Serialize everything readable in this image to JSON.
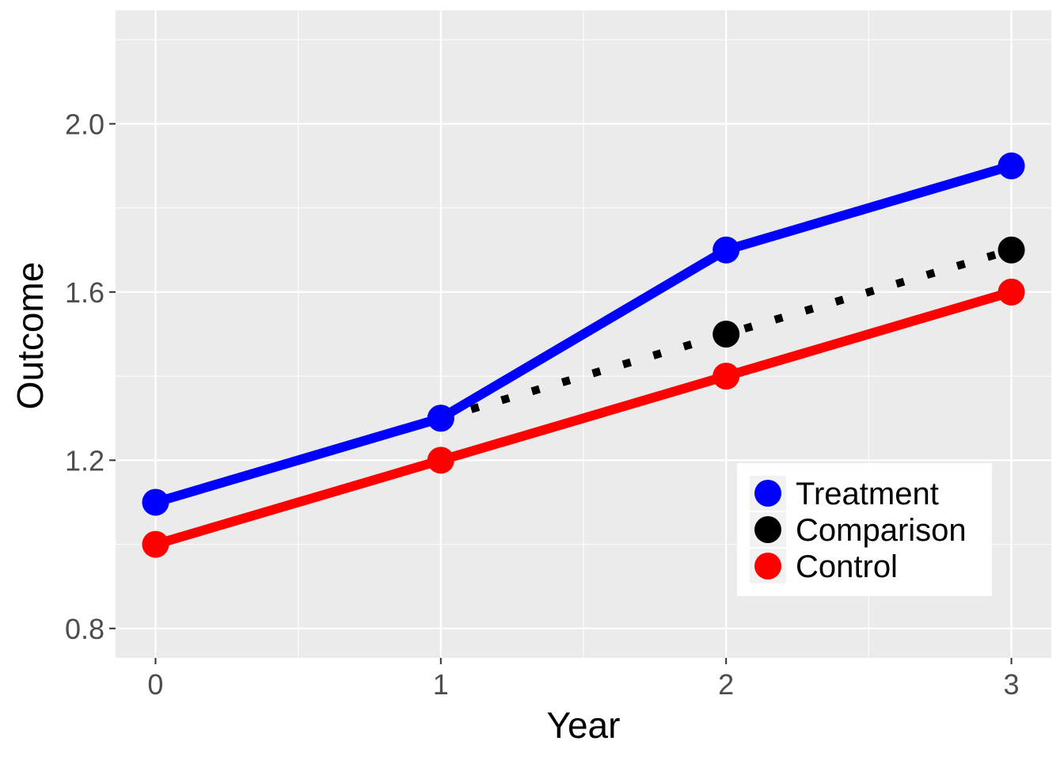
{
  "chart_data": {
    "type": "line",
    "xlabel": "Year",
    "ylabel": "Outcome",
    "x": [
      0,
      1,
      2,
      3
    ],
    "x_ticks": [
      "0",
      "1",
      "2",
      "3"
    ],
    "y_ticks": [
      "0.8",
      "1.2",
      "1.6",
      "2.0"
    ],
    "xlim": [
      -0.14,
      3.14
    ],
    "ylim": [
      0.73,
      2.27
    ],
    "grid": true,
    "legend_position": "bottom-right",
    "series": [
      {
        "name": "Treatment",
        "x": [
          0,
          1,
          2,
          3
        ],
        "values": [
          1.1,
          1.3,
          1.7,
          1.9
        ],
        "color": "#0000ff",
        "linestyle": "solid"
      },
      {
        "name": "Comparison",
        "x": [
          1,
          2,
          3
        ],
        "values": [
          1.3,
          1.5,
          1.7
        ],
        "color": "#000000",
        "linestyle": "dotted"
      },
      {
        "name": "Control",
        "x": [
          0,
          1,
          2,
          3
        ],
        "values": [
          1.0,
          1.2,
          1.4,
          1.6
        ],
        "color": "#ff0000",
        "linestyle": "solid"
      }
    ],
    "colors": {
      "panel": "#ebebeb",
      "grid": "#ffffff"
    }
  }
}
